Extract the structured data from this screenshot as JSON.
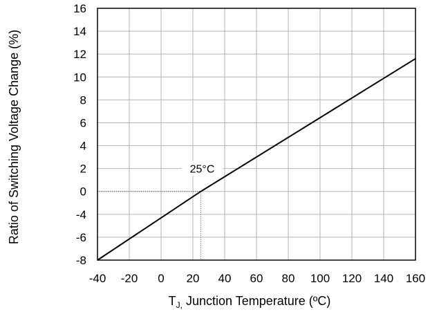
{
  "chart_data": {
    "type": "line",
    "title": "",
    "xlabel_main": "T",
    "xlabel_sub": "J,",
    "xlabel_rest": " Junction Temperature (ºC)",
    "ylabel": "Ratio of Switching Voltage Change (%)",
    "xlim": [
      -40,
      160
    ],
    "ylim": [
      -8,
      16
    ],
    "x_ticks": [
      -40,
      -20,
      0,
      20,
      40,
      60,
      80,
      100,
      120,
      140,
      160
    ],
    "y_ticks": [
      16,
      14,
      12,
      10,
      8,
      6,
      4,
      2,
      0,
      -4,
      -6,
      -8
    ],
    "grid": true,
    "series": [
      {
        "x": [
          -40,
          25,
          160
        ],
        "y": [
          -8,
          0,
          11.6
        ]
      }
    ],
    "annotation": {
      "label": "25°C",
      "x": 25,
      "y": 0
    }
  }
}
